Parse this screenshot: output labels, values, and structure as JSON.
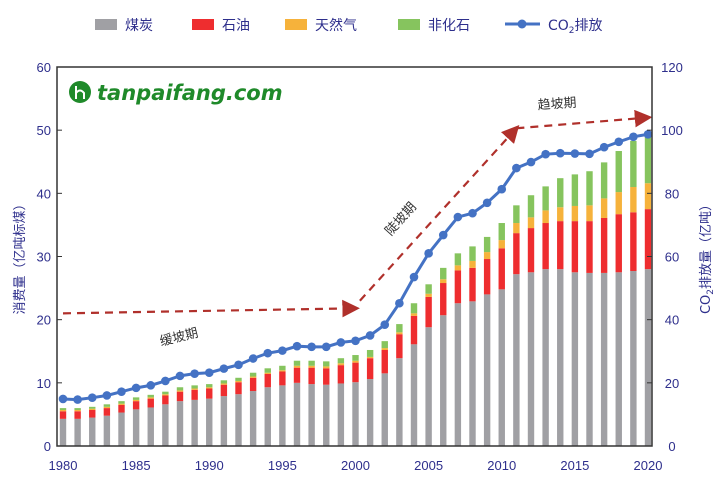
{
  "chart_data": {
    "type": "bar",
    "stacked": true,
    "legend": {
      "position": "top",
      "items": [
        "煤炭",
        "石油",
        "天然气",
        "非化石",
        "CO2排放"
      ]
    },
    "colors": {
      "煤炭": "#a0a0a4",
      "石油": "#ee2d2f",
      "天然气": "#f6b23b",
      "非化石": "#86c45e",
      "CO2排放": "#4472c4",
      "arrow": "#b0302b"
    },
    "ylabel_left": "消费量（亿吨标煤）",
    "ylabel_right": "CO2排放量（亿吨）",
    "ylim_left": [
      0,
      60
    ],
    "ylim_right": [
      0,
      120
    ],
    "yticks_left": [
      "0",
      "10",
      "20",
      "30",
      "40",
      "50",
      "60"
    ],
    "yticks_right": [
      "0",
      "20",
      "40",
      "60",
      "80",
      "100",
      "120"
    ],
    "xticks": [
      "1980",
      "1985",
      "1990",
      "1995",
      "2000",
      "2005",
      "2010",
      "2015",
      "2020"
    ],
    "x": [
      1980,
      1981,
      1982,
      1983,
      1984,
      1985,
      1986,
      1987,
      1988,
      1989,
      1990,
      1991,
      1992,
      1993,
      1994,
      1995,
      1996,
      1997,
      1998,
      1999,
      2000,
      2001,
      2002,
      2003,
      2004,
      2005,
      2006,
      2007,
      2008,
      2009,
      2010,
      2011,
      2012,
      2013,
      2014,
      2015,
      2016,
      2017,
      2018,
      2019,
      2020
    ],
    "series": [
      {
        "name": "煤炭",
        "axis": "left",
        "values": [
          4.3,
          4.3,
          4.5,
          4.8,
          5.3,
          5.8,
          6.1,
          6.6,
          7.1,
          7.3,
          7.5,
          7.9,
          8.2,
          8.7,
          9.3,
          9.6,
          10.0,
          9.8,
          9.7,
          9.9,
          10.1,
          10.6,
          11.5,
          13.9,
          16.1,
          18.8,
          20.7,
          22.6,
          22.9,
          24.0,
          24.8,
          27.2,
          27.5,
          28.0,
          28.0,
          27.5,
          27.4,
          27.4,
          27.5,
          27.7,
          28.0
        ]
      },
      {
        "name": "石油",
        "axis": "left",
        "values": [
          1.2,
          1.2,
          1.2,
          1.2,
          1.2,
          1.3,
          1.4,
          1.4,
          1.5,
          1.6,
          1.6,
          1.8,
          1.9,
          2.1,
          2.1,
          2.2,
          2.4,
          2.6,
          2.6,
          2.9,
          3.1,
          3.3,
          3.7,
          3.8,
          4.5,
          4.8,
          5.1,
          5.2,
          5.3,
          5.6,
          6.5,
          6.5,
          7.0,
          7.3,
          7.6,
          8.1,
          8.2,
          8.7,
          9.2,
          9.3,
          9.5
        ]
      },
      {
        "name": "天然气",
        "axis": "left",
        "values": [
          0.2,
          0.2,
          0.2,
          0.2,
          0.2,
          0.2,
          0.2,
          0.2,
          0.2,
          0.2,
          0.2,
          0.2,
          0.2,
          0.2,
          0.2,
          0.2,
          0.3,
          0.3,
          0.3,
          0.3,
          0.3,
          0.2,
          0.3,
          0.3,
          0.4,
          0.5,
          0.6,
          0.8,
          1.1,
          1.1,
          1.3,
          1.6,
          1.7,
          2.0,
          2.2,
          2.4,
          2.5,
          3.1,
          3.5,
          4.0,
          4.1
        ]
      },
      {
        "name": "非化石",
        "axis": "left",
        "values": [
          0.3,
          0.3,
          0.3,
          0.4,
          0.4,
          0.4,
          0.4,
          0.4,
          0.5,
          0.5,
          0.5,
          0.5,
          0.5,
          0.6,
          0.7,
          0.7,
          0.8,
          0.8,
          0.8,
          0.8,
          0.9,
          1.1,
          1.1,
          1.3,
          1.6,
          1.5,
          1.8,
          1.9,
          2.3,
          2.4,
          2.7,
          2.8,
          3.5,
          3.8,
          4.6,
          5.0,
          5.4,
          5.7,
          6.5,
          7.3,
          7.9
        ]
      },
      {
        "name": "CO2排放",
        "axis": "right",
        "type": "line",
        "values": [
          14.9,
          14.7,
          15.3,
          16.0,
          17.2,
          18.4,
          19.2,
          20.6,
          22.2,
          22.9,
          23.2,
          24.5,
          25.7,
          27.7,
          29.4,
          30.2,
          31.6,
          31.4,
          31.4,
          32.8,
          33.3,
          35.0,
          38.4,
          45.2,
          53.5,
          61.0,
          66.8,
          72.5,
          73.7,
          77.0,
          81.3,
          88.0,
          89.9,
          92.4,
          92.7,
          92.6,
          92.5,
          94.6,
          96.3,
          97.9,
          98.7
        ]
      }
    ],
    "annotations": [
      "缓坡期",
      "陡坡期",
      "趋坡期"
    ]
  },
  "legend_labels": {
    "coal": "煤炭",
    "oil": "石油",
    "gas": "天然气",
    "nonfossil": "非化石",
    "co2_prefix": "CO",
    "co2_sub": "2",
    "co2_suffix": "排放"
  },
  "axis_right_label": {
    "prefix": "CO",
    "sub": "2",
    "suffix": "排放量（亿吨）"
  },
  "watermark": "tanpaifang.com"
}
